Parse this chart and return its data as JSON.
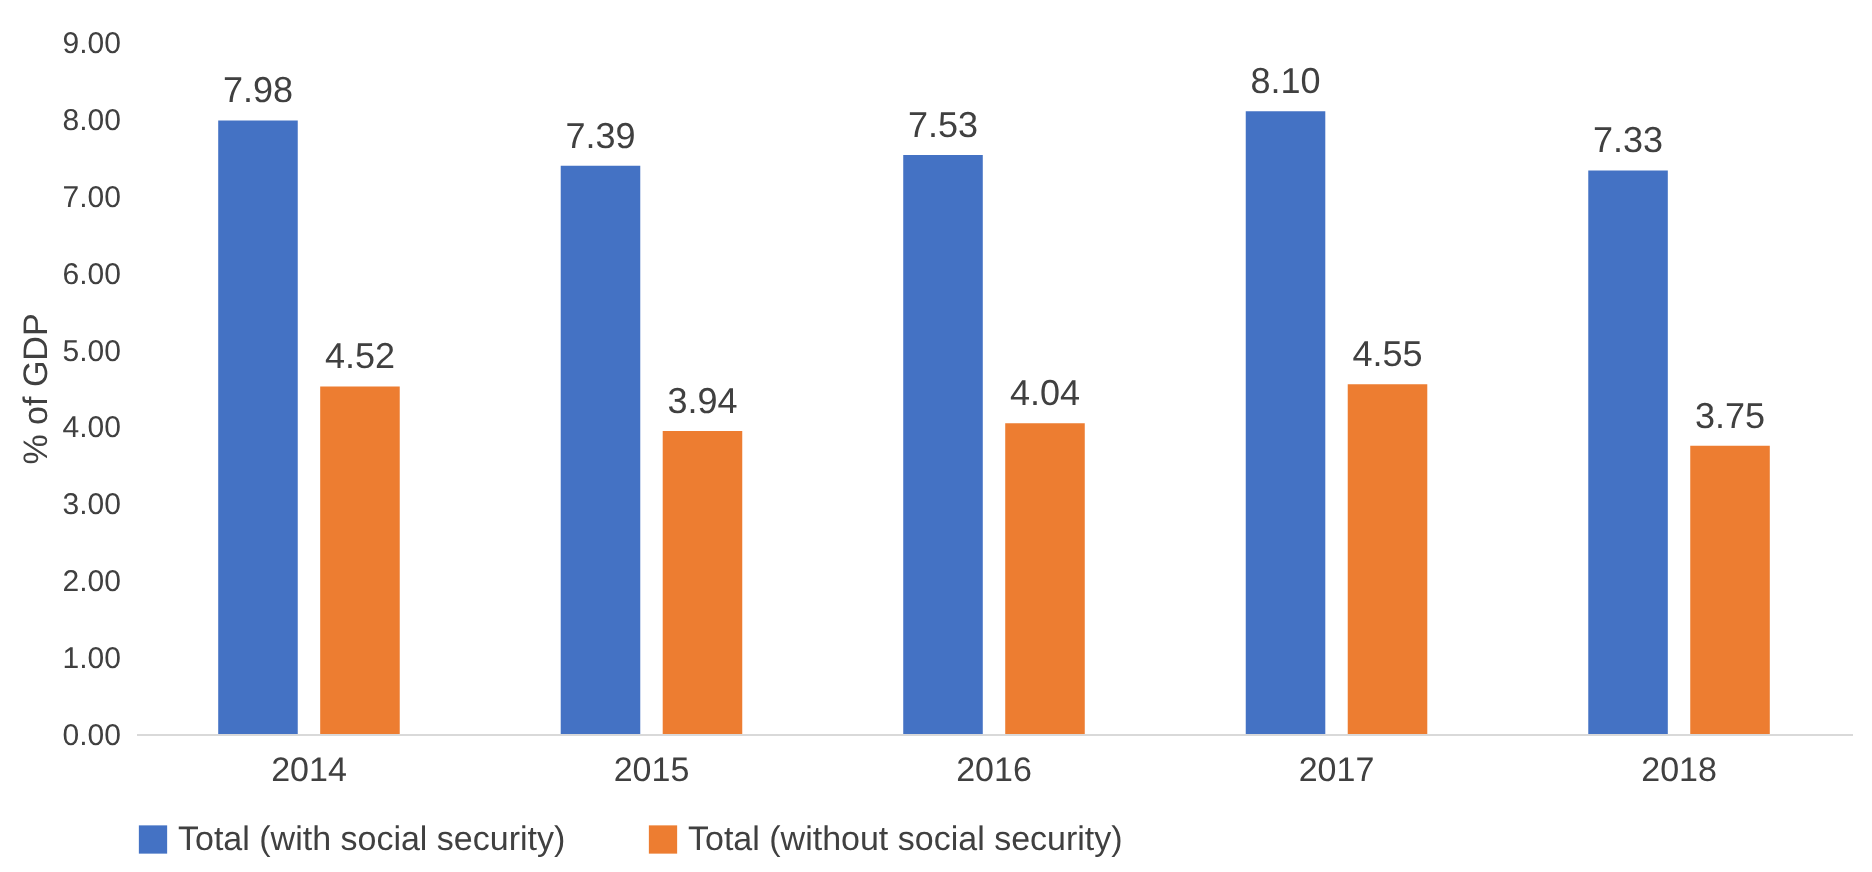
{
  "chart_data": {
    "type": "bar",
    "ylabel": "% of GDP",
    "categories": [
      "2014",
      "2015",
      "2016",
      "2017",
      "2018"
    ],
    "series": [
      {
        "name": "Total (with social security)",
        "color": "#4472c4",
        "values": [
          7.98,
          7.39,
          7.53,
          8.1,
          7.33
        ],
        "value_labels": [
          "7.98",
          "7.39",
          "7.53",
          "8.10",
          "7.33"
        ]
      },
      {
        "name": "Total (without social security)",
        "color": "#ed7d31",
        "values": [
          4.52,
          3.94,
          4.04,
          4.55,
          3.75
        ],
        "value_labels": [
          "4.52",
          "3.94",
          "4.04",
          "4.55",
          "3.75"
        ]
      }
    ],
    "ylim": [
      0,
      9
    ],
    "yticks": [
      {
        "value": 0,
        "label": "0.00"
      },
      {
        "value": 1,
        "label": "1.00"
      },
      {
        "value": 2,
        "label": "2.00"
      },
      {
        "value": 3,
        "label": "3.00"
      },
      {
        "value": 4,
        "label": "4.00"
      },
      {
        "value": 5,
        "label": "5.00"
      },
      {
        "value": 6,
        "label": "6.00"
      },
      {
        "value": 7,
        "label": "7.00"
      },
      {
        "value": 8,
        "label": "8.00"
      },
      {
        "value": 9,
        "label": "9.00"
      }
    ],
    "grid": false,
    "legend": "bottom"
  }
}
